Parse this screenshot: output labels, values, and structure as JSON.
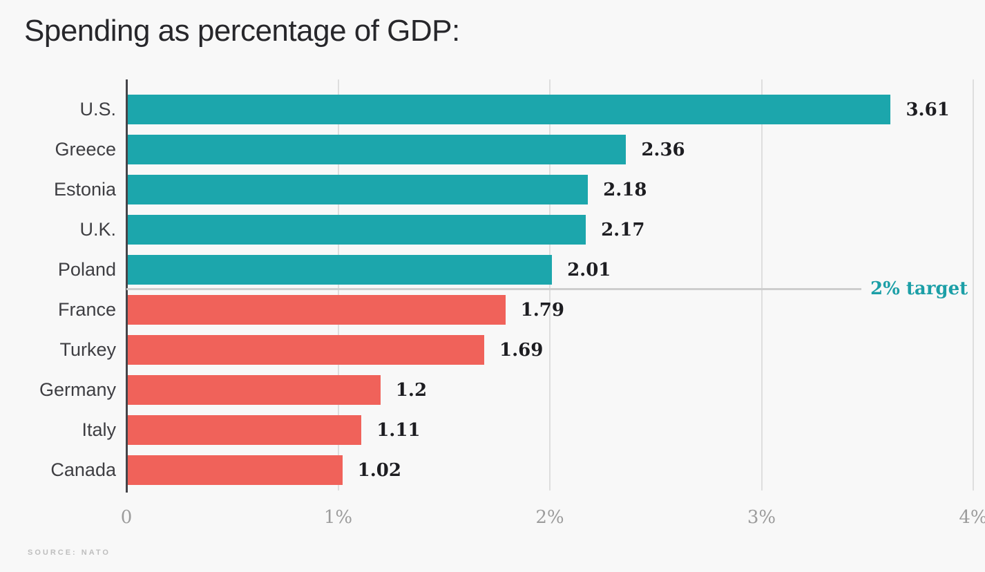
{
  "title": "Spending as percentage of GDP:",
  "source": "SOURCE: NATO",
  "chart_data": {
    "type": "bar",
    "orientation": "horizontal",
    "title": "Spending as percentage of GDP:",
    "categories": [
      "U.S.",
      "Greece",
      "Estonia",
      "U.K.",
      "Poland",
      "France",
      "Turkey",
      "Germany",
      "Italy",
      "Canada"
    ],
    "values": [
      3.61,
      2.36,
      2.18,
      2.17,
      2.01,
      1.79,
      1.69,
      1.2,
      1.11,
      1.02
    ],
    "value_labels": [
      "3.61",
      "2.36",
      "2.18",
      "2.17",
      "2.01",
      "1.79",
      "1.69",
      "1.2",
      "1.11",
      "1.02"
    ],
    "x_ticks": [
      "0",
      "1%",
      "2%",
      "3%",
      "4%"
    ],
    "xlim": [
      0,
      4
    ],
    "grid": true,
    "legend": false,
    "target": {
      "value": 2,
      "label": "2% target"
    },
    "colors": {
      "above_target": "#1ca6ac",
      "below_target": "#f0625a",
      "target_line": "#cdcdcd",
      "target_text": "#1c9fa7",
      "gridline": "#dedede",
      "axis": "#454549",
      "background": "#f8f8f8"
    },
    "source": "SOURCE: NATO"
  }
}
